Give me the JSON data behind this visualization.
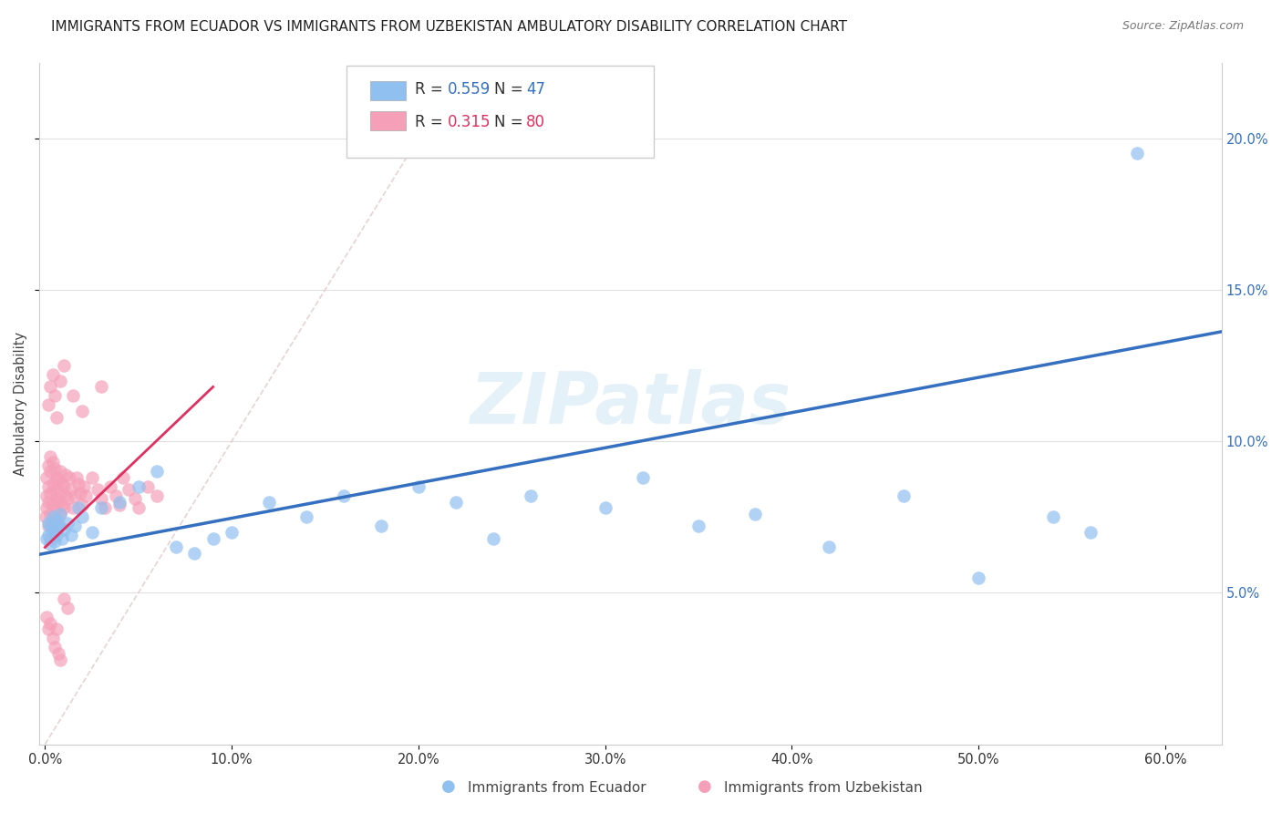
{
  "title": "IMMIGRANTS FROM ECUADOR VS IMMIGRANTS FROM UZBEKISTAN AMBULATORY DISABILITY CORRELATION CHART",
  "source": "Source: ZipAtlas.com",
  "ylabel": "Ambulatory Disability",
  "color_ecuador": "#90c0f0",
  "color_uzbekistan": "#f5a0b8",
  "color_line_ecuador": "#3570c0",
  "color_line_uzbekistan": "#e03060",
  "color_diagonal": "#e0c0c0",
  "watermark_text": "ZIPatlas",
  "xlim": [
    -0.003,
    0.63
  ],
  "ylim": [
    0.0,
    0.225
  ],
  "xtick_vals": [
    0.0,
    0.1,
    0.2,
    0.3,
    0.4,
    0.5,
    0.6
  ],
  "ytick_vals": [
    0.05,
    0.1,
    0.15,
    0.2
  ],
  "ecuador_x": [
    0.001,
    0.002,
    0.002,
    0.003,
    0.003,
    0.004,
    0.004,
    0.005,
    0.005,
    0.006,
    0.006,
    0.007,
    0.008,
    0.009,
    0.01,
    0.012,
    0.014,
    0.016,
    0.018,
    0.02,
    0.025,
    0.03,
    0.04,
    0.05,
    0.06,
    0.07,
    0.08,
    0.09,
    0.1,
    0.12,
    0.14,
    0.16,
    0.18,
    0.2,
    0.22,
    0.24,
    0.26,
    0.3,
    0.32,
    0.35,
    0.38,
    0.42,
    0.46,
    0.5,
    0.54,
    0.56,
    0.585
  ],
  "ecuador_y": [
    0.068,
    0.073,
    0.069,
    0.072,
    0.066,
    0.07,
    0.075,
    0.071,
    0.067,
    0.074,
    0.069,
    0.072,
    0.076,
    0.068,
    0.071,
    0.073,
    0.069,
    0.072,
    0.078,
    0.075,
    0.07,
    0.078,
    0.08,
    0.085,
    0.09,
    0.065,
    0.063,
    0.068,
    0.07,
    0.08,
    0.075,
    0.082,
    0.072,
    0.085,
    0.08,
    0.068,
    0.082,
    0.078,
    0.088,
    0.072,
    0.076,
    0.065,
    0.082,
    0.055,
    0.075,
    0.07,
    0.195
  ],
  "uzbekistan_x": [
    0.0005,
    0.001,
    0.001,
    0.001,
    0.002,
    0.002,
    0.002,
    0.002,
    0.003,
    0.003,
    0.003,
    0.003,
    0.003,
    0.004,
    0.004,
    0.004,
    0.004,
    0.005,
    0.005,
    0.005,
    0.005,
    0.006,
    0.006,
    0.006,
    0.007,
    0.007,
    0.007,
    0.008,
    0.008,
    0.008,
    0.009,
    0.009,
    0.01,
    0.01,
    0.011,
    0.011,
    0.012,
    0.013,
    0.014,
    0.015,
    0.016,
    0.017,
    0.018,
    0.019,
    0.02,
    0.021,
    0.022,
    0.025,
    0.028,
    0.03,
    0.032,
    0.035,
    0.038,
    0.04,
    0.042,
    0.045,
    0.048,
    0.05,
    0.055,
    0.06,
    0.001,
    0.002,
    0.003,
    0.004,
    0.005,
    0.006,
    0.007,
    0.008,
    0.01,
    0.012,
    0.002,
    0.003,
    0.004,
    0.005,
    0.006,
    0.008,
    0.01,
    0.015,
    0.02,
    0.03
  ],
  "uzbekistan_y": [
    0.075,
    0.078,
    0.082,
    0.088,
    0.072,
    0.08,
    0.085,
    0.092,
    0.068,
    0.076,
    0.083,
    0.09,
    0.095,
    0.072,
    0.079,
    0.086,
    0.093,
    0.07,
    0.077,
    0.084,
    0.091,
    0.074,
    0.081,
    0.088,
    0.073,
    0.08,
    0.087,
    0.076,
    0.083,
    0.09,
    0.079,
    0.086,
    0.078,
    0.085,
    0.082,
    0.089,
    0.081,
    0.088,
    0.084,
    0.078,
    0.082,
    0.088,
    0.086,
    0.083,
    0.079,
    0.085,
    0.082,
    0.088,
    0.084,
    0.081,
    0.078,
    0.085,
    0.082,
    0.079,
    0.088,
    0.084,
    0.081,
    0.078,
    0.085,
    0.082,
    0.042,
    0.038,
    0.04,
    0.035,
    0.032,
    0.038,
    0.03,
    0.028,
    0.048,
    0.045,
    0.112,
    0.118,
    0.122,
    0.115,
    0.108,
    0.12,
    0.125,
    0.115,
    0.11,
    0.118
  ],
  "legend_label_ecuador": "R = 0.559   N = 47",
  "legend_label_uzbekistan": "R = 0.315   N = 80",
  "bottom_label_ecuador": "Immigrants from Ecuador",
  "bottom_label_uzbekistan": "Immigrants from Uzbekistan"
}
